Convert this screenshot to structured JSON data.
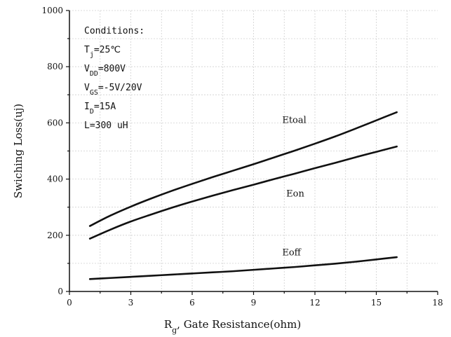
{
  "chart_data": {
    "type": "line",
    "xlabel_main": "R",
    "xlabel_sub": "g",
    "xlabel_rest": ", Gate Resistance(ohm)",
    "ylabel": "Swiching Loss(uj)",
    "xlim": [
      0,
      18
    ],
    "ylim": [
      0,
      1000
    ],
    "xticks": [
      0,
      3,
      6,
      9,
      12,
      15,
      18
    ],
    "yticks": [
      0,
      200,
      400,
      600,
      800,
      1000
    ],
    "grid": true,
    "conditions": {
      "title": "Conditions:",
      "items": [
        {
          "main": "T",
          "sub": "j",
          "rest": "=25℃"
        },
        {
          "main": "V",
          "sub": "DD",
          "rest": "=800V"
        },
        {
          "main": "V",
          "sub": "GS",
          "rest": "=-5V/20V"
        },
        {
          "main": "I",
          "sub": "D",
          "rest": "=15A"
        },
        {
          "main": "L=300 uH",
          "sub": "",
          "rest": ""
        }
      ]
    },
    "series": [
      {
        "name": "Etoal",
        "label_at": [
          10.4,
          600
        ],
        "x": [
          1,
          2,
          3,
          4,
          5,
          6,
          7,
          8,
          9,
          10,
          11,
          12,
          13,
          14,
          15,
          16
        ],
        "y": [
          233,
          270,
          302,
          331,
          358,
          383,
          407,
          430,
          453,
          477,
          501,
          526,
          552,
          580,
          609,
          638
        ]
      },
      {
        "name": "Eon",
        "label_at": [
          10.6,
          338
        ],
        "x": [
          1,
          2,
          3,
          4,
          5,
          6,
          7,
          8,
          9,
          10,
          11,
          12,
          13,
          14,
          15,
          16
        ],
        "y": [
          188,
          220,
          249,
          274,
          298,
          320,
          341,
          361,
          380,
          400,
          419,
          439,
          458,
          478,
          497,
          516
        ]
      },
      {
        "name": "Eoff",
        "label_at": [
          10.4,
          128
        ],
        "x": [
          1,
          2,
          3,
          4,
          5,
          6,
          7,
          8,
          9,
          10,
          11,
          12,
          13,
          14,
          15,
          16
        ],
        "y": [
          44,
          48,
          52,
          56,
          60,
          64,
          68,
          72,
          77,
          82,
          87,
          93,
          99,
          106,
          114,
          122
        ]
      }
    ]
  }
}
